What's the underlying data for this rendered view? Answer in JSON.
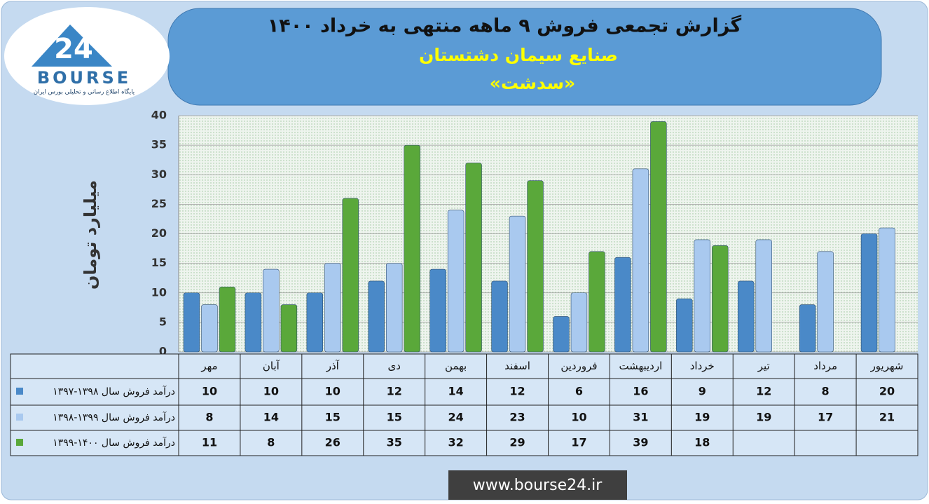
{
  "logo": {
    "mark": "24",
    "name": "BOURSE",
    "tagline": "پایگاه اطلاع رسانی و تحلیلی بورس ایران"
  },
  "chart_data": {
    "type": "bar",
    "title": "گزارش تجمعی فروش ۹ ماهه منتهی به خرداد ۱۴۰۰",
    "subtitle": "صنایع سیمان دشتستان",
    "subtitle2": "«سدشت»",
    "y_label": "میلیارد تومان",
    "categories": [
      "مهر",
      "آبان",
      "آذر",
      "دی",
      "بهمن",
      "اسفند",
      "فروردین",
      "اردیبهشت",
      "خرداد",
      "تیر",
      "مرداد",
      "شهریور"
    ],
    "series": [
      {
        "name": "درآمد فروش سال ۱۳۹۸-۱۳۹۷",
        "color": "#4a89c8",
        "values": [
          10,
          10,
          10,
          12,
          14,
          12,
          6,
          16,
          9,
          12,
          8,
          20
        ]
      },
      {
        "name": "درآمد فروش سال ۱۳۹۹-۱۳۹۸",
        "color": "#a9c9ef",
        "values": [
          8,
          14,
          15,
          15,
          24,
          23,
          10,
          31,
          19,
          19,
          17,
          21
        ]
      },
      {
        "name": "درآمد فروش سال ۱۴۰۰-۱۳۹۹",
        "color": "#5aa83a",
        "values": [
          11,
          8,
          26,
          35,
          32,
          29,
          17,
          39,
          18,
          null,
          null,
          null
        ]
      }
    ],
    "ylim": [
      0,
      40
    ],
    "yticks": [
      0,
      5,
      10,
      15,
      20,
      25,
      30,
      35,
      40
    ],
    "grid": true
  },
  "footer": "www.bourse24.ir"
}
